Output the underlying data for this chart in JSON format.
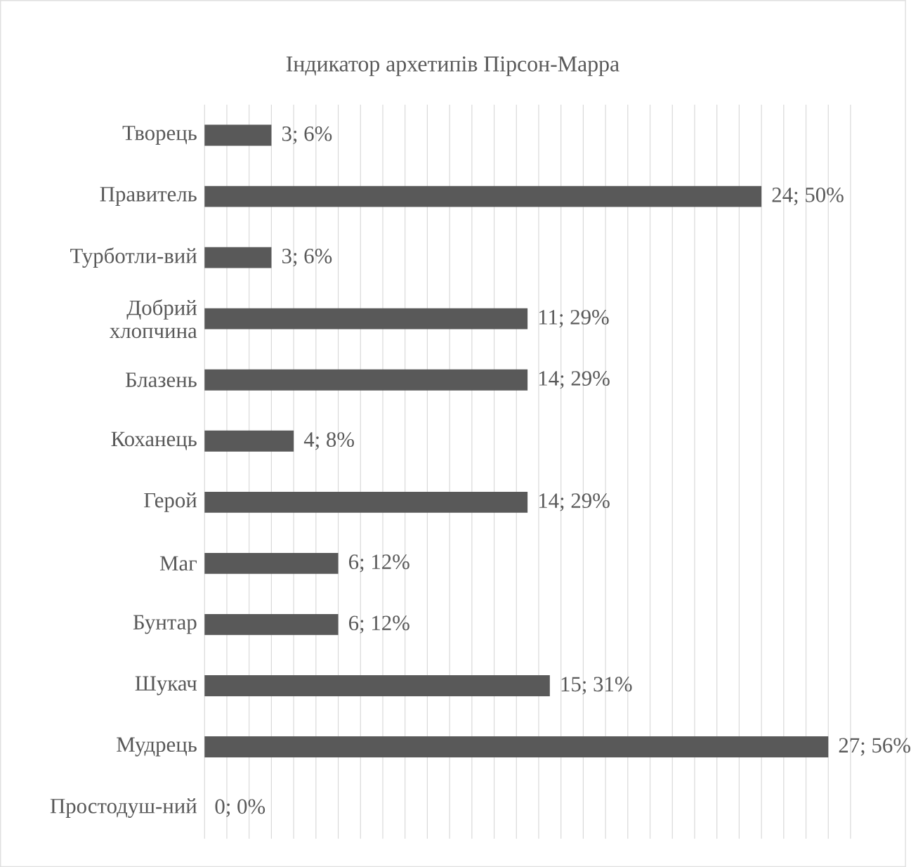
{
  "chart_data": {
    "type": "bar",
    "orientation": "horizontal",
    "title": "Індикатор архетипів Пірсон-Марра",
    "categories": [
      "Творець",
      "Правитель",
      "Турботли-вий",
      "Добрий хлопчина",
      "Блазень",
      "Коханець",
      "Герой",
      "Маг",
      "Бунтар",
      "Шукач",
      "Мудрець",
      "Простодуш-ний"
    ],
    "values": [
      6,
      50,
      6,
      29,
      29,
      8,
      29,
      12,
      12,
      31,
      56,
      0
    ],
    "value_labels": [
      "3; 6%",
      "24; 50%",
      "3; 6%",
      "11; 29%",
      "14; 29%",
      "4; 8%",
      "14; 29%",
      "6; 12%",
      "6; 12%",
      "15; 31%",
      "27; 56%",
      "0; 0%"
    ],
    "color": "#595959",
    "grid": "x",
    "tick_labels": "y"
  }
}
